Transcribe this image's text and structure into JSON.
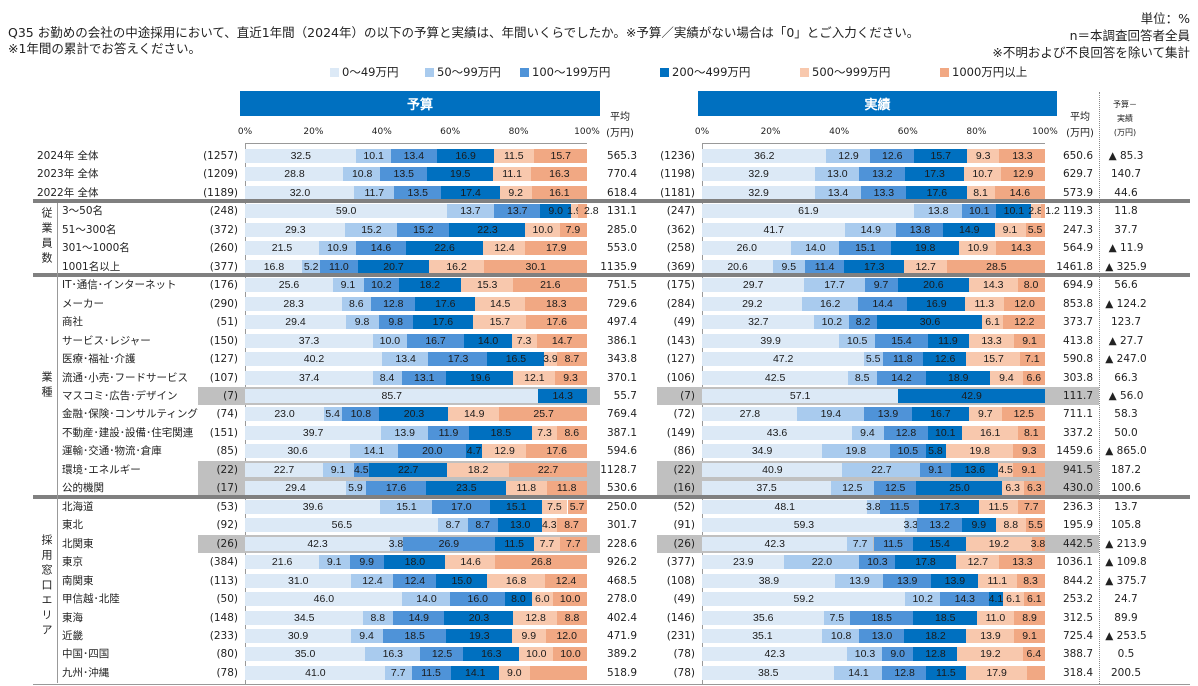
{
  "title": "Q35 お勤めの会社の中途採用において、直近1年間（2024年）の以下の予算と実績は、年間いくらでしたか。※予算／実績がない場合は「0」とご入力ください。※1年間の累計でお答えください。",
  "notes": {
    "unit": "単位：%",
    "base": "n＝本調査回答者全員",
    "excl": "※不明および不良回答を除いて集計"
  },
  "chart_data": {
    "type": "bar",
    "orientation": "horizontal-stacked-100",
    "legend": [
      "0～49万円",
      "50～99万円",
      "100～199万円",
      "200～499万円",
      "500～999万円",
      "1000万円以上"
    ],
    "legend_placement": "top",
    "colors": [
      "#dce9f6",
      "#a9cbee",
      "#4f93d8",
      "#0070c0",
      "#f8c8ad",
      "#f1a883"
    ],
    "panels": {
      "budget": "予算",
      "actual": "実績"
    },
    "x_ticks": [
      "0%",
      "20%",
      "40%",
      "60%",
      "80%",
      "100%"
    ],
    "xlim": [
      0,
      100
    ],
    "avg_header": [
      "平均",
      "(万円)"
    ],
    "diff_header": [
      "予算－",
      "実績",
      "(万円)"
    ],
    "groups": [
      {
        "label": "",
        "rows": [
          0,
          2
        ]
      },
      {
        "label": "従業員数",
        "rows": [
          3,
          6
        ]
      },
      {
        "label": "業種",
        "rows": [
          7,
          18
        ]
      },
      {
        "label": "採用窓口エリア",
        "rows": [
          19,
          28
        ]
      }
    ],
    "rows": [
      {
        "label": "2024年 全体",
        "b": {
          "n": "(1257)",
          "v": [
            32.5,
            10.1,
            13.4,
            16.9,
            11.5,
            15.7
          ],
          "avg": "565.3"
        },
        "a": {
          "n": "(1236)",
          "v": [
            36.2,
            12.9,
            12.6,
            15.7,
            9.3,
            13.3
          ],
          "avg": "650.6"
        },
        "diff": "▲ 85.3"
      },
      {
        "label": "2023年 全体",
        "b": {
          "n": "(1209)",
          "v": [
            28.8,
            10.8,
            13.5,
            19.5,
            11.1,
            16.3
          ],
          "avg": "770.4"
        },
        "a": {
          "n": "(1198)",
          "v": [
            32.9,
            13.0,
            13.2,
            17.3,
            10.7,
            12.9
          ],
          "avg": "629.7"
        },
        "diff": "140.7"
      },
      {
        "label": "2022年 全体",
        "b": {
          "n": "(1189)",
          "v": [
            32.0,
            11.7,
            13.5,
            17.4,
            9.2,
            16.1
          ],
          "avg": "618.4"
        },
        "a": {
          "n": "(1181)",
          "v": [
            32.9,
            13.4,
            13.3,
            17.6,
            8.1,
            14.6
          ],
          "avg": "573.9"
        },
        "diff": "44.6"
      },
      {
        "label": "3～50名",
        "b": {
          "n": "(248)",
          "v": [
            59.0,
            13.7,
            13.7,
            9.0,
            1.9,
            2.8
          ],
          "avg": "131.1"
        },
        "a": {
          "n": "(247)",
          "v": [
            61.9,
            13.8,
            10.1,
            10.1,
            2.8,
            1.2
          ],
          "avg": "119.3"
        },
        "diff": "11.8"
      },
      {
        "label": "51～300名",
        "b": {
          "n": "(372)",
          "v": [
            29.3,
            15.2,
            15.2,
            22.3,
            10.0,
            7.9
          ],
          "avg": "285.0"
        },
        "a": {
          "n": "(362)",
          "v": [
            41.7,
            14.9,
            13.8,
            14.9,
            9.1,
            5.5
          ],
          "avg": "247.3"
        },
        "diff": "37.7"
      },
      {
        "label": "301～1000名",
        "b": {
          "n": "(260)",
          "v": [
            21.5,
            10.9,
            14.6,
            22.6,
            12.4,
            17.9
          ],
          "avg": "553.0"
        },
        "a": {
          "n": "(258)",
          "v": [
            26.0,
            14.0,
            15.1,
            19.8,
            10.9,
            14.3
          ],
          "avg": "564.9"
        },
        "diff": "▲ 11.9"
      },
      {
        "label": "1001名以上",
        "b": {
          "n": "(377)",
          "v": [
            16.8,
            5.2,
            11.0,
            20.7,
            16.2,
            30.1
          ],
          "avg": "1135.9"
        },
        "a": {
          "n": "(369)",
          "v": [
            20.6,
            9.5,
            11.4,
            17.3,
            12.7,
            28.5
          ],
          "avg": "1461.8"
        },
        "diff": "▲ 325.9"
      },
      {
        "label": "IT･通信･インターネット",
        "b": {
          "n": "(176)",
          "v": [
            25.6,
            9.1,
            10.2,
            18.2,
            15.3,
            21.6
          ],
          "avg": "751.5"
        },
        "a": {
          "n": "(175)",
          "v": [
            29.7,
            17.7,
            9.7,
            20.6,
            14.3,
            8.0
          ],
          "avg": "694.9"
        },
        "diff": "56.6"
      },
      {
        "label": "メーカー",
        "b": {
          "n": "(290)",
          "v": [
            28.3,
            8.6,
            12.8,
            17.6,
            14.5,
            18.3
          ],
          "avg": "729.6"
        },
        "a": {
          "n": "(284)",
          "v": [
            29.2,
            16.2,
            14.4,
            16.9,
            11.3,
            12.0
          ],
          "avg": "853.8"
        },
        "diff": "▲ 124.2"
      },
      {
        "label": "商社",
        "b": {
          "n": "(51)",
          "v": [
            29.4,
            9.8,
            9.8,
            17.6,
            15.7,
            17.6
          ],
          "avg": "497.4"
        },
        "a": {
          "n": "(49)",
          "v": [
            32.7,
            10.2,
            8.2,
            30.6,
            6.1,
            12.2
          ],
          "avg": "373.7"
        },
        "diff": "123.7"
      },
      {
        "label": "サービス･レジャー",
        "b": {
          "n": "(150)",
          "v": [
            37.3,
            10.0,
            16.7,
            14.0,
            7.3,
            14.7
          ],
          "avg": "386.1"
        },
        "a": {
          "n": "(143)",
          "v": [
            39.9,
            10.5,
            15.4,
            11.9,
            13.3,
            9.1
          ],
          "avg": "413.8"
        },
        "diff": "▲ 27.7"
      },
      {
        "label": "医療･福祉･介護",
        "b": {
          "n": "(127)",
          "v": [
            40.2,
            13.4,
            17.3,
            16.5,
            3.9,
            8.7
          ],
          "avg": "343.8"
        },
        "a": {
          "n": "(127)",
          "v": [
            47.2,
            5.5,
            11.8,
            12.6,
            15.7,
            7.1
          ],
          "avg": "590.8"
        },
        "diff": "▲ 247.0"
      },
      {
        "label": "流通･小売･フードサービス",
        "b": {
          "n": "(107)",
          "v": [
            37.4,
            8.4,
            13.1,
            19.6,
            12.1,
            9.3
          ],
          "avg": "370.1"
        },
        "a": {
          "n": "(106)",
          "v": [
            42.5,
            8.5,
            14.2,
            18.9,
            9.4,
            6.6
          ],
          "avg": "303.8"
        },
        "diff": "66.3"
      },
      {
        "label": "マスコミ･広告･デザイン",
        "hl": true,
        "b": {
          "n": "(7)",
          "v": [
            85.7,
            0,
            0,
            14.3,
            0,
            0
          ],
          "avg": "55.7"
        },
        "a": {
          "n": "(7)",
          "v": [
            57.1,
            0,
            0,
            42.9,
            0,
            0
          ],
          "avg": "111.7"
        },
        "diff": "▲ 56.0"
      },
      {
        "label": "金融･保険･コンサルティング",
        "b": {
          "n": "(74)",
          "v": [
            23.0,
            5.4,
            10.8,
            20.3,
            14.9,
            25.7
          ],
          "avg": "769.4"
        },
        "a": {
          "n": "(72)",
          "v": [
            27.8,
            19.4,
            13.9,
            16.7,
            9.7,
            12.5
          ],
          "avg": "711.1"
        },
        "diff": "58.3"
      },
      {
        "label": "不動産･建設･設備･住宅関連",
        "b": {
          "n": "(151)",
          "v": [
            39.7,
            13.9,
            11.9,
            18.5,
            7.3,
            8.6
          ],
          "avg": "387.1"
        },
        "a": {
          "n": "(149)",
          "v": [
            43.6,
            9.4,
            12.8,
            10.1,
            16.1,
            8.1
          ],
          "avg": "337.2"
        },
        "diff": "50.0"
      },
      {
        "label": "運輸･交通･物流･倉庫",
        "b": {
          "n": "(85)",
          "v": [
            30.6,
            14.1,
            20.0,
            4.7,
            12.9,
            17.6
          ],
          "avg": "594.6"
        },
        "a": {
          "n": "(86)",
          "v": [
            34.9,
            19.8,
            10.5,
            5.8,
            19.8,
            9.3
          ],
          "avg": "1459.6"
        },
        "diff": "▲ 865.0"
      },
      {
        "label": "環境･エネルギー",
        "hl": true,
        "b": {
          "n": "(22)",
          "v": [
            22.7,
            9.1,
            4.5,
            22.7,
            18.2,
            22.7
          ],
          "avg": "1128.7"
        },
        "a": {
          "n": "(22)",
          "v": [
            40.9,
            22.7,
            9.1,
            13.6,
            4.5,
            9.1
          ],
          "avg": "941.5"
        },
        "diff": "187.2"
      },
      {
        "label": "公的機関",
        "hl": true,
        "b": {
          "n": "(17)",
          "v": [
            29.4,
            5.9,
            17.6,
            23.5,
            11.8,
            11.8
          ],
          "avg": "530.6"
        },
        "a": {
          "n": "(16)",
          "v": [
            37.5,
            12.5,
            12.5,
            25.0,
            6.3,
            6.3
          ],
          "avg": "430.0"
        },
        "diff": "100.6"
      },
      {
        "label": "北海道",
        "b": {
          "n": "(53)",
          "v": [
            39.6,
            15.1,
            17.0,
            15.1,
            7.5,
            5.7
          ],
          "avg": "250.0"
        },
        "a": {
          "n": "(52)",
          "v": [
            48.1,
            3.8,
            11.5,
            17.3,
            11.5,
            7.7
          ],
          "avg": "236.3"
        },
        "diff": "13.7"
      },
      {
        "label": "東北",
        "b": {
          "n": "(92)",
          "v": [
            56.5,
            8.7,
            8.7,
            13.0,
            4.3,
            8.7
          ],
          "avg": "301.7"
        },
        "a": {
          "n": "(91)",
          "v": [
            59.3,
            3.3,
            13.2,
            9.9,
            8.8,
            5.5
          ],
          "avg": "195.9"
        },
        "diff": "105.8"
      },
      {
        "label": "北関東",
        "hl": true,
        "b": {
          "n": "(26)",
          "v": [
            42.3,
            3.8,
            26.9,
            11.5,
            7.7,
            7.7
          ],
          "avg": "228.6"
        },
        "a": {
          "n": "(26)",
          "v": [
            42.3,
            7.7,
            11.5,
            15.4,
            19.2,
            3.8
          ],
          "avg": "442.5"
        },
        "diff": "▲ 213.9"
      },
      {
        "label": "東京",
        "b": {
          "n": "(384)",
          "v": [
            21.6,
            9.1,
            9.9,
            18.0,
            14.6,
            26.8
          ],
          "avg": "926.2"
        },
        "a": {
          "n": "(377)",
          "v": [
            23.9,
            22.0,
            10.3,
            17.8,
            12.7,
            13.3
          ],
          "avg": "1036.1"
        },
        "diff": "▲ 109.8"
      },
      {
        "label": "南関東",
        "b": {
          "n": "(113)",
          "v": [
            31.0,
            12.4,
            12.4,
            15.0,
            16.8,
            12.4
          ],
          "avg": "468.5"
        },
        "a": {
          "n": "(108)",
          "v": [
            38.9,
            13.9,
            13.9,
            13.9,
            11.1,
            8.3
          ],
          "avg": "844.2"
        },
        "diff": "▲ 375.7"
      },
      {
        "label": "甲信越･北陸",
        "b": {
          "n": "(50)",
          "v": [
            46.0,
            14.0,
            16.0,
            8.0,
            6.0,
            10.0
          ],
          "avg": "278.0"
        },
        "a": {
          "n": "(49)",
          "v": [
            59.2,
            10.2,
            14.3,
            4.1,
            6.1,
            6.1
          ],
          "avg": "253.2"
        },
        "diff": "24.7"
      },
      {
        "label": "東海",
        "b": {
          "n": "(148)",
          "v": [
            34.5,
            8.8,
            14.9,
            20.3,
            12.8,
            8.8
          ],
          "avg": "402.4"
        },
        "a": {
          "n": "(146)",
          "v": [
            35.6,
            7.5,
            18.5,
            18.5,
            11.0,
            8.9
          ],
          "avg": "312.5"
        },
        "diff": "89.9"
      },
      {
        "label": "近畿",
        "b": {
          "n": "(233)",
          "v": [
            30.9,
            9.4,
            18.5,
            19.3,
            9.9,
            12.0
          ],
          "avg": "471.9"
        },
        "a": {
          "n": "(231)",
          "v": [
            35.1,
            10.8,
            13.0,
            18.2,
            13.9,
            9.1
          ],
          "avg": "725.4"
        },
        "diff": "▲ 253.5"
      },
      {
        "label": "中国･四国",
        "b": {
          "n": "(80)",
          "v": [
            35.0,
            16.3,
            12.5,
            16.3,
            10.0,
            10.0
          ],
          "avg": "389.2"
        },
        "a": {
          "n": "(78)",
          "v": [
            42.3,
            10.3,
            9.0,
            12.8,
            19.2,
            6.4
          ],
          "avg": "388.7"
        },
        "diff": "0.5"
      },
      {
        "label": "九州･沖縄",
        "b": {
          "n": "(78)",
          "v": [
            41.0,
            7.7,
            11.5,
            14.1,
            9.0,
            16.7
          ],
          "unlabeled": [
            5
          ],
          "avg": "518.9"
        },
        "a": {
          "n": "(78)",
          "v": [
            38.5,
            14.1,
            12.8,
            11.5,
            17.9,
            5.2
          ],
          "unlabeled": [
            5
          ],
          "avg": "318.4"
        },
        "diff": "200.5"
      }
    ]
  }
}
